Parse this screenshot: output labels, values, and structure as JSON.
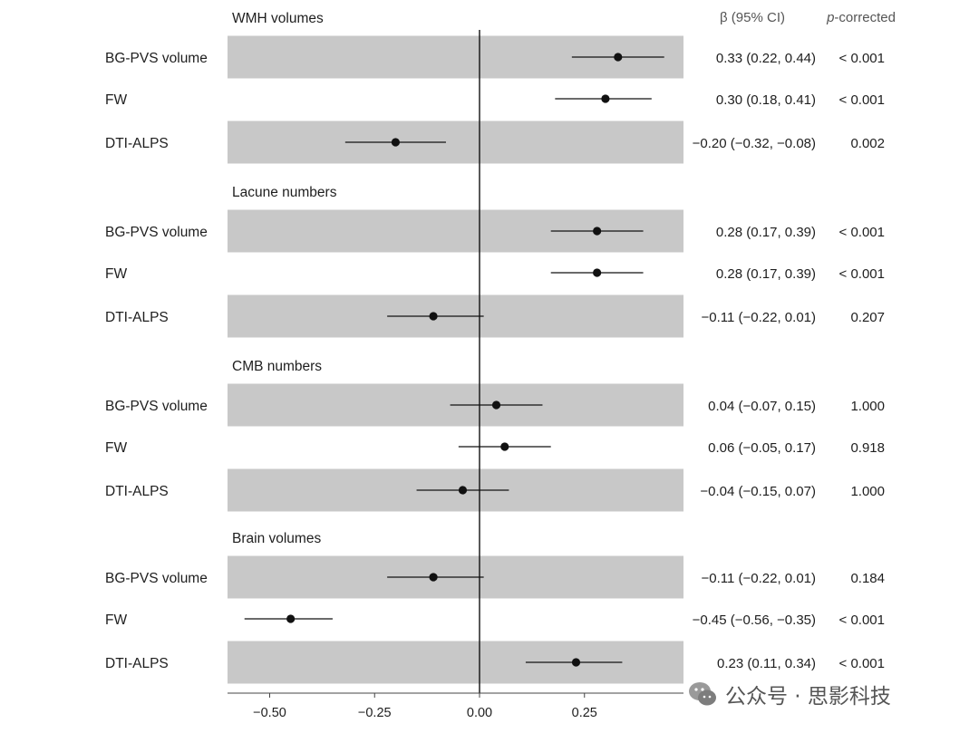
{
  "chart_data": {
    "type": "forest",
    "headers": {
      "beta": "β (95% CI)",
      "p_prefix": "p",
      "p_suffix": "-corrected"
    },
    "x_axis": {
      "min": -0.6,
      "max": 0.48,
      "ticks": [
        -0.5,
        -0.25,
        0.0,
        0.25
      ],
      "tick_labels": [
        "−0.50",
        "−0.25",
        "0.00",
        "0.25"
      ]
    },
    "groups": [
      {
        "title": "WMH volumes",
        "rows": [
          {
            "label": "BG-PVS volume",
            "beta": 0.33,
            "lo": 0.22,
            "hi": 0.44,
            "ci_text": "0.33 (0.22, 0.44)",
            "p_text": "< 0.001",
            "shaded": true
          },
          {
            "label": "FW",
            "beta": 0.3,
            "lo": 0.18,
            "hi": 0.41,
            "ci_text": "0.30 (0.18, 0.41)",
            "p_text": "< 0.001",
            "shaded": false
          },
          {
            "label": "DTI-ALPS",
            "beta": -0.2,
            "lo": -0.32,
            "hi": -0.08,
            "ci_text": "−0.20 (−0.32, −0.08)",
            "p_text": "0.002",
            "shaded": true
          }
        ]
      },
      {
        "title": "Lacune numbers",
        "rows": [
          {
            "label": "BG-PVS volume",
            "beta": 0.28,
            "lo": 0.17,
            "hi": 0.39,
            "ci_text": "0.28 (0.17, 0.39)",
            "p_text": "< 0.001",
            "shaded": true
          },
          {
            "label": "FW",
            "beta": 0.28,
            "lo": 0.17,
            "hi": 0.39,
            "ci_text": "0.28 (0.17, 0.39)",
            "p_text": "< 0.001",
            "shaded": false
          },
          {
            "label": "DTI-ALPS",
            "beta": -0.11,
            "lo": -0.22,
            "hi": 0.01,
            "ci_text": "−0.11 (−0.22, 0.01)",
            "p_text": "0.207",
            "shaded": true
          }
        ]
      },
      {
        "title": "CMB numbers",
        "rows": [
          {
            "label": "BG-PVS volume",
            "beta": 0.04,
            "lo": -0.07,
            "hi": 0.15,
            "ci_text": "0.04 (−0.07, 0.15)",
            "p_text": "1.000",
            "shaded": true
          },
          {
            "label": "FW",
            "beta": 0.06,
            "lo": -0.05,
            "hi": 0.17,
            "ci_text": "0.06 (−0.05, 0.17)",
            "p_text": "0.918",
            "shaded": false
          },
          {
            "label": "DTI-ALPS",
            "beta": -0.04,
            "lo": -0.15,
            "hi": 0.07,
            "ci_text": "−0.04 (−0.15, 0.07)",
            "p_text": "1.000",
            "shaded": true
          }
        ]
      },
      {
        "title": "Brain volumes",
        "rows": [
          {
            "label": "BG-PVS volume",
            "beta": -0.11,
            "lo": -0.22,
            "hi": 0.01,
            "ci_text": "−0.11 (−0.22, 0.01)",
            "p_text": "0.184",
            "shaded": true
          },
          {
            "label": "FW",
            "beta": -0.45,
            "lo": -0.56,
            "hi": -0.35,
            "ci_text": "−0.45 (−0.56, −0.35)",
            "p_text": "< 0.001",
            "shaded": false
          },
          {
            "label": "DTI-ALPS",
            "beta": 0.23,
            "lo": 0.11,
            "hi": 0.34,
            "ci_text": "0.23 (0.11, 0.34)",
            "p_text": "< 0.001",
            "shaded": true
          }
        ]
      }
    ]
  },
  "watermark": {
    "text": "公众号 · 思影科技",
    "icon": "wechat-icon"
  },
  "colors": {
    "band": "#c8c8c8",
    "ink": "#111111"
  }
}
